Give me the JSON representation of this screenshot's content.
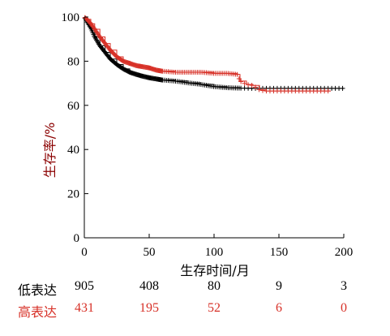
{
  "chart_data": {
    "type": "line",
    "title": "",
    "xlabel": "生存时间/月",
    "ylabel": "生存率/%",
    "xlim": [
      0,
      200
    ],
    "ylim": [
      0,
      100
    ],
    "xticks": [
      0,
      50,
      100,
      150,
      200
    ],
    "yticks": [
      0,
      20,
      40,
      60,
      80,
      100
    ],
    "grid": false,
    "series": [
      {
        "name": "低表达",
        "color": "#000000",
        "x": [
          0,
          2,
          5,
          8,
          12,
          16,
          20,
          25,
          30,
          35,
          40,
          45,
          50,
          55,
          60,
          70,
          80,
          90,
          100,
          110,
          120,
          130,
          140,
          150,
          160,
          170,
          180,
          190,
          200
        ],
        "y": [
          100,
          98,
          95,
          91,
          87,
          84,
          81,
          78.5,
          76.5,
          75,
          74,
          73.2,
          72.5,
          72,
          71.5,
          71,
          70.2,
          69.5,
          68.5,
          68,
          67.8,
          67.7,
          67.7,
          67.7,
          67.7,
          67.7,
          67.7,
          67.7,
          67.7
        ]
      },
      {
        "name": "高表达",
        "color": "#d73027",
        "x": [
          0,
          2,
          5,
          8,
          12,
          16,
          20,
          25,
          30,
          35,
          40,
          45,
          50,
          55,
          60,
          70,
          80,
          90,
          100,
          110,
          118,
          120,
          125,
          130,
          135,
          140,
          150,
          160,
          170,
          180,
          190
        ],
        "y": [
          100,
          99,
          97,
          94.5,
          91,
          88,
          85,
          82,
          80,
          79,
          78,
          77.5,
          77,
          76,
          75.5,
          75,
          75,
          75,
          74.5,
          74.5,
          74,
          71,
          69.5,
          69,
          67,
          66.5,
          66.5,
          66.5,
          66.5,
          66.5,
          66.5
        ]
      }
    ],
    "risk_table": {
      "x": [
        0,
        50,
        100,
        150,
        200
      ],
      "rows": [
        {
          "name": "低表达",
          "color": "#000000",
          "values": [
            "905",
            "408",
            "80",
            "9",
            "3"
          ]
        },
        {
          "name": "高表达",
          "color": "#d73027",
          "values": [
            "431",
            "195",
            "52",
            "6",
            "0"
          ]
        }
      ]
    }
  }
}
